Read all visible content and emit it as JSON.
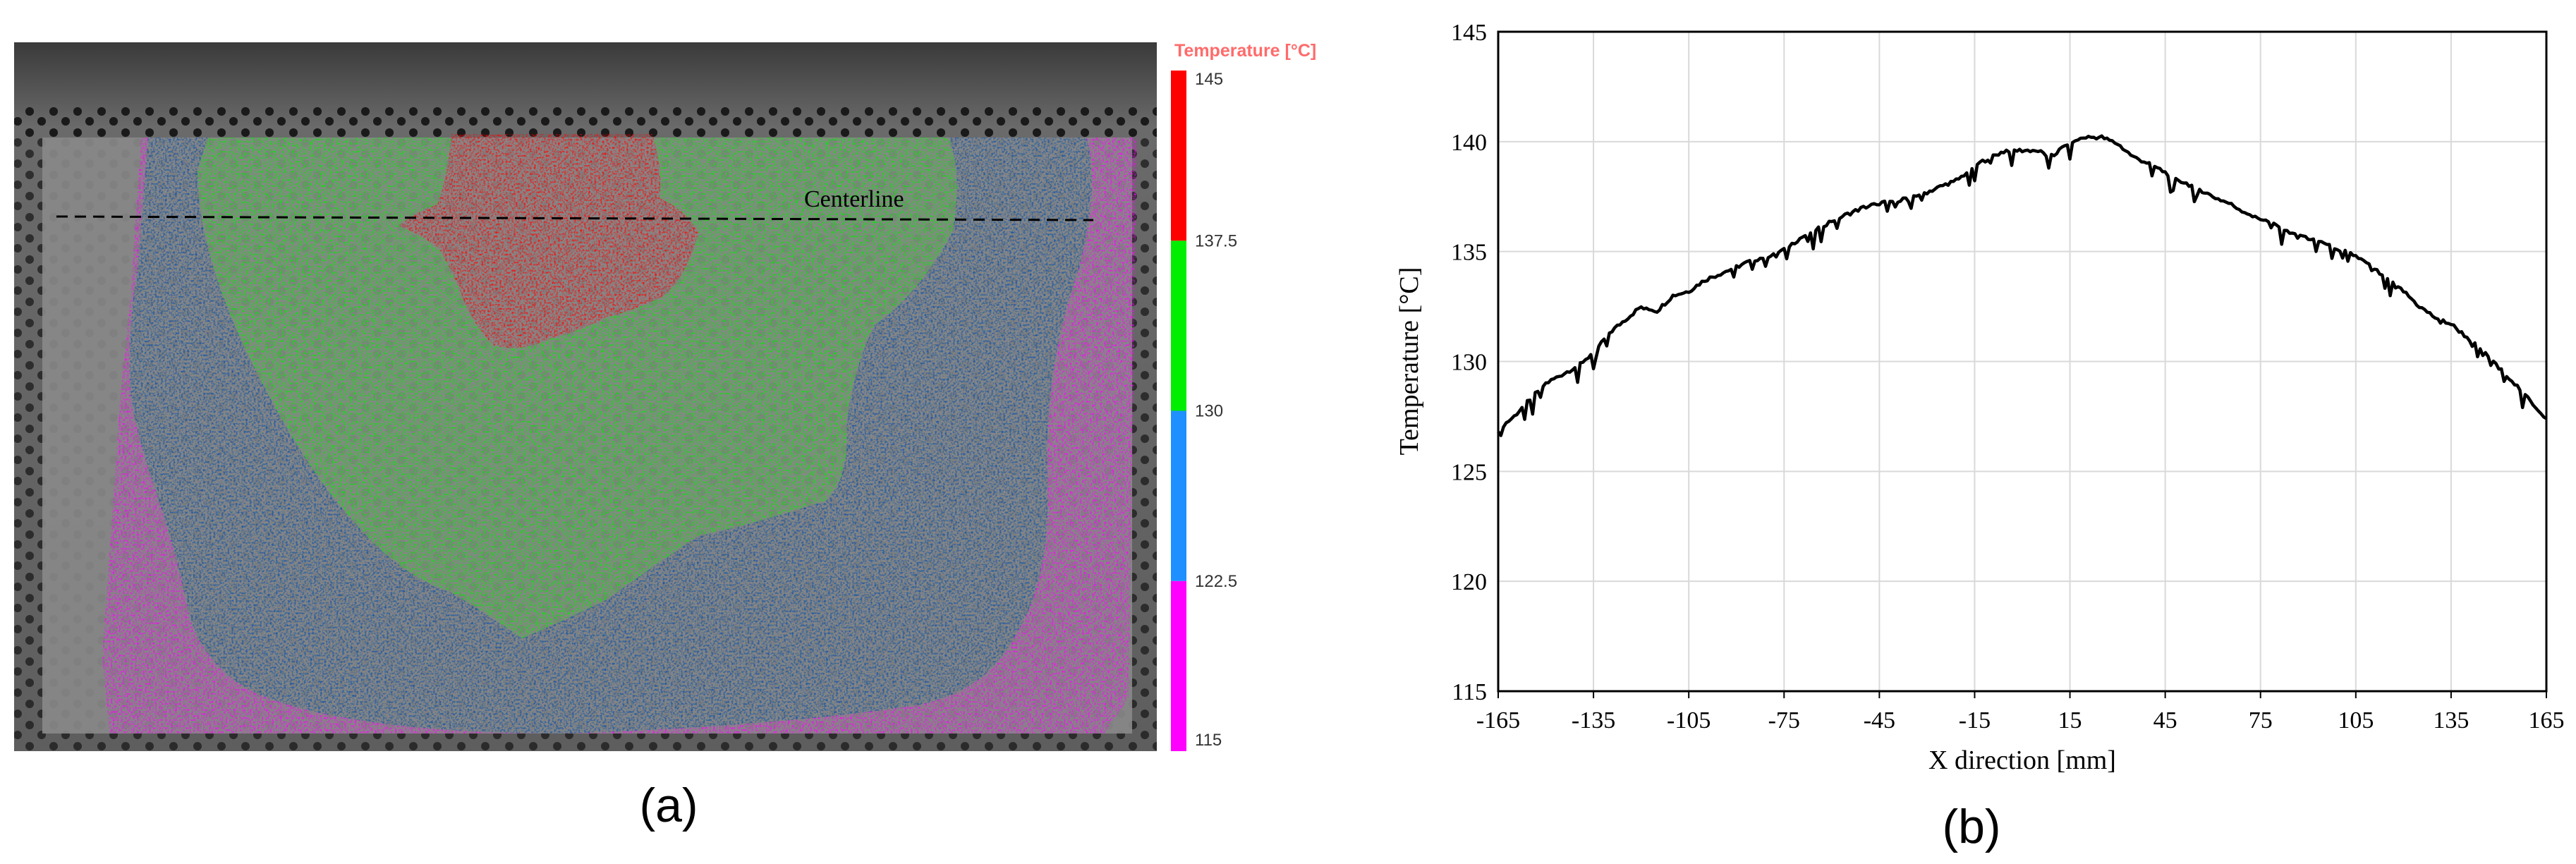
{
  "panels": {
    "a": {
      "caption": "(a)",
      "annotation": "Centerline",
      "colorbar": {
        "title": "Temperature [°C]",
        "title_color": "#ff6b6b",
        "bands": [
          {
            "min": 115,
            "max": 122.5,
            "color": "#ff00ff"
          },
          {
            "min": 122.5,
            "max": 130,
            "color": "#1e90ff"
          },
          {
            "min": 130,
            "max": 137.5,
            "color": "#00ee00"
          },
          {
            "min": 137.5,
            "max": 145,
            "color": "#ff0000"
          }
        ],
        "tick_labels": [
          "115",
          "122.5",
          "130",
          "137.5",
          "145"
        ]
      },
      "map_colors": {
        "background": "#5a5a5a",
        "specimen_edge": "#8a8a8a",
        "magenta": "#ff00ff",
        "blue": "#0b4fa8",
        "green": "#00ee00",
        "red": "#ff0000"
      }
    },
    "b": {
      "caption": "(b)"
    }
  },
  "chart_data": {
    "type": "line",
    "title": "",
    "xlabel": "X direction [mm]",
    "ylabel": "Temperature [°C]",
    "xlim": [
      -165,
      165
    ],
    "ylim": [
      115,
      145
    ],
    "xticks": [
      -165,
      -135,
      -105,
      -75,
      -45,
      -15,
      15,
      45,
      75,
      105,
      135,
      165
    ],
    "yticks": [
      115,
      120,
      125,
      130,
      135,
      140,
      145
    ],
    "grid": true,
    "series": [
      {
        "name": "",
        "color": "#000000",
        "x": [
          -165,
          -160,
          -155,
          -150,
          -145,
          -140,
          -135,
          -130,
          -125,
          -120,
          -115,
          -110,
          -105,
          -100,
          -95,
          -90,
          -85,
          -80,
          -75,
          -70,
          -65,
          -60,
          -55,
          -50,
          -45,
          -40,
          -35,
          -30,
          -25,
          -20,
          -15,
          -10,
          -5,
          0,
          5,
          10,
          15,
          20,
          25,
          30,
          35,
          40,
          45,
          50,
          55,
          60,
          65,
          70,
          75,
          80,
          85,
          90,
          95,
          100,
          105,
          110,
          115,
          120,
          125,
          130,
          135,
          140,
          145,
          150,
          155,
          160,
          165
        ],
        "y": [
          126.9,
          127.5,
          128.3,
          129.0,
          129.4,
          129.8,
          130.4,
          131.3,
          131.9,
          132.5,
          132.3,
          133.0,
          133.2,
          133.7,
          134.0,
          134.3,
          134.6,
          134.8,
          135.1,
          135.6,
          136.0,
          136.4,
          136.7,
          137.0,
          137.2,
          137.3,
          137.5,
          137.7,
          138.0,
          138.3,
          138.9,
          139.3,
          139.6,
          139.6,
          139.6,
          139.4,
          140.0,
          140.2,
          140.2,
          139.9,
          139.3,
          139.0,
          138.6,
          138.2,
          137.9,
          137.5,
          137.2,
          136.8,
          136.5,
          136.2,
          135.9,
          135.6,
          135.4,
          135.1,
          134.8,
          134.3,
          133.8,
          133.2,
          132.5,
          132.0,
          131.7,
          131.1,
          130.5,
          129.8,
          129.0,
          128.2,
          127.4
        ]
      }
    ]
  }
}
